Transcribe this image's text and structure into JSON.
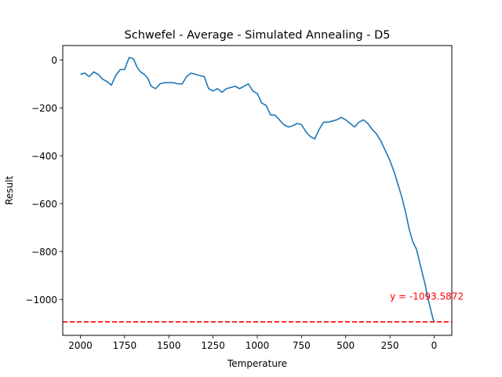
{
  "chart_data": {
    "type": "line",
    "title": "Schwefel - Average - Simulated Annealing - D5",
    "xlabel": "Temperature",
    "ylabel": "Result",
    "xlim": [
      2100,
      -100
    ],
    "ylim": [
      -1150,
      60
    ],
    "x_inverted": true,
    "grid": false,
    "xticks": [
      {
        "value": 2000,
        "label": "2000"
      },
      {
        "value": 1750,
        "label": "1750"
      },
      {
        "value": 1500,
        "label": "1500"
      },
      {
        "value": 1250,
        "label": "1250"
      },
      {
        "value": 1000,
        "label": "1000"
      },
      {
        "value": 750,
        "label": "750"
      },
      {
        "value": 500,
        "label": "500"
      },
      {
        "value": 250,
        "label": "250"
      },
      {
        "value": 0,
        "label": "0"
      }
    ],
    "yticks": [
      {
        "value": 0,
        "label": "0"
      },
      {
        "value": -200,
        "label": "−200"
      },
      {
        "value": -400,
        "label": "−400"
      },
      {
        "value": -600,
        "label": "−600"
      },
      {
        "value": -800,
        "label": "−800"
      },
      {
        "value": -1000,
        "label": "−1000"
      }
    ],
    "series": [
      {
        "color": "#1f77b4",
        "x": [
          2000,
          1975,
          1950,
          1925,
          1900,
          1875,
          1850,
          1825,
          1800,
          1775,
          1750,
          1725,
          1700,
          1680,
          1660,
          1640,
          1620,
          1600,
          1575,
          1550,
          1525,
          1500,
          1475,
          1450,
          1425,
          1400,
          1375,
          1350,
          1325,
          1300,
          1275,
          1250,
          1225,
          1200,
          1175,
          1150,
          1125,
          1100,
          1075,
          1050,
          1025,
          1000,
          975,
          950,
          925,
          900,
          875,
          850,
          825,
          800,
          775,
          750,
          725,
          700,
          675,
          650,
          625,
          600,
          575,
          550,
          525,
          500,
          475,
          450,
          425,
          400,
          375,
          350,
          325,
          300,
          275,
          250,
          225,
          200,
          180,
          160,
          140,
          120,
          100,
          90,
          80,
          70,
          60,
          50,
          40,
          30,
          20,
          10,
          5,
          0
        ],
        "y": [
          -60,
          -55,
          -70,
          -50,
          -60,
          -80,
          -90,
          -105,
          -65,
          -40,
          -40,
          10,
          5,
          -30,
          -50,
          -60,
          -75,
          -110,
          -120,
          -100,
          -95,
          -95,
          -95,
          -100,
          -100,
          -70,
          -55,
          -60,
          -65,
          -70,
          -120,
          -130,
          -120,
          -135,
          -120,
          -115,
          -110,
          -120,
          -110,
          -100,
          -130,
          -140,
          -180,
          -190,
          -230,
          -230,
          -250,
          -270,
          -280,
          -275,
          -265,
          -270,
          -300,
          -320,
          -330,
          -290,
          -260,
          -260,
          -255,
          -250,
          -240,
          -250,
          -265,
          -280,
          -260,
          -250,
          -265,
          -290,
          -310,
          -340,
          -380,
          -420,
          -470,
          -530,
          -580,
          -640,
          -710,
          -760,
          -790,
          -820,
          -850,
          -880,
          -910,
          -940,
          -980,
          -1010,
          -1040,
          -1070,
          -1085,
          -1093.5872
        ]
      }
    ],
    "hline": {
      "y": -1093.5872,
      "color": "#ff0000",
      "style": "dashed"
    },
    "annotation": {
      "text": "y = -1093.5872",
      "x": 250,
      "y": -1000,
      "color": "#ff0000"
    }
  }
}
